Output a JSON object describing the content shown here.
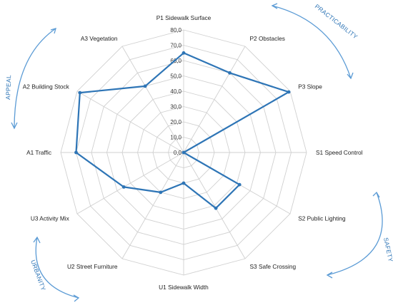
{
  "chart_data": {
    "type": "radar",
    "categories": [
      "P1 Sidewalk Surface",
      "P2 Obstacles",
      "P3 Slope",
      "S1 Speed Control",
      "S2 Public  Lighting",
      "S3 Safe Crossing",
      "U1 Sidewalk Width",
      "U2 Street Furniture",
      "U3 Activity Mix",
      "A1 Traffic",
      "A2 Building Stock",
      "A3 Vegetation"
    ],
    "series": [
      {
        "values": [
          65,
          60,
          79,
          0,
          42,
          42,
          20,
          30,
          45,
          70,
          78,
          50
        ]
      }
    ],
    "rlim": [
      0,
      80
    ],
    "ticks": [
      "0,0",
      "10,0",
      "20,0",
      "30,0",
      "40,0",
      "50,0",
      "60,0",
      "70,0",
      "80,0"
    ],
    "groups": [
      "PRACTICABILITY",
      "SAFETY",
      "URBANITY",
      "APPEAL"
    ],
    "colors": {
      "series": "#2e75b6",
      "grid": "#d0d0d0",
      "arcs": "#5b9bd5"
    }
  }
}
